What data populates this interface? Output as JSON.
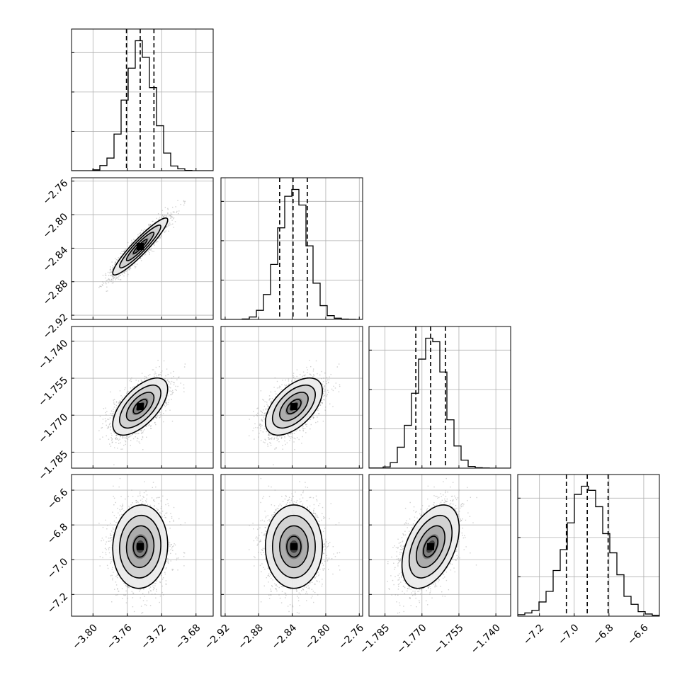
{
  "chart_data": {
    "type": "corner",
    "parameters": [
      {
        "center": -3.745,
        "sigma": 0.016,
        "quantiles": [
          -3.761,
          -3.745,
          -3.729
        ],
        "range": [
          -3.825,
          -3.66
        ],
        "ticks": [
          "−3.80",
          "−3.76",
          "−3.72",
          "−3.68"
        ],
        "tick_values": [
          -3.8,
          -3.76,
          -3.72,
          -3.68
        ]
      },
      {
        "center": -2.838,
        "sigma": 0.017,
        "quantiles": [
          -2.855,
          -2.839,
          -2.822
        ],
        "range": [
          -2.925,
          -2.756
        ],
        "ticks": [
          "−2.92",
          "−2.88",
          "−2.84",
          "−2.80",
          "−2.76"
        ],
        "tick_values": [
          -2.92,
          -2.88,
          -2.84,
          -2.8,
          -2.76
        ]
      },
      {
        "center": -1.7665,
        "sigma": 0.0058,
        "quantiles": [
          -1.7725,
          -1.7665,
          -1.7605
        ],
        "range": [
          -1.7915,
          -1.734
        ],
        "ticks": [
          "−1.785",
          "−1.770",
          "−1.755",
          "−1.740"
        ],
        "tick_values": [
          -1.785,
          -1.77,
          -1.755,
          -1.74
        ]
      },
      {
        "center": -6.925,
        "sigma": 0.12,
        "quantiles": [
          -7.045,
          -6.925,
          -6.805
        ],
        "range": [
          -7.325,
          -6.51
        ],
        "ticks": [
          "−7.2",
          "−7.0",
          "−6.8",
          "−6.6"
        ],
        "tick_values": [
          -7.2,
          -7.0,
          -6.8,
          -6.6
        ]
      }
    ],
    "correlations": [
      [
        1.0,
        0.93,
        0.62,
        0.05
      ],
      [
        0.93,
        1.0,
        0.55,
        0.0
      ],
      [
        0.62,
        0.55,
        1.0,
        0.45
      ],
      [
        0.05,
        0.0,
        0.45,
        1.0
      ]
    ],
    "histogram_bins": 20,
    "contour_levels_sigma": [
      0.5,
      1.0,
      1.5,
      2.0
    ],
    "quantile_line_style": "dashed",
    "grid": true,
    "colors": {
      "points": "#9a9a9a",
      "lines": "#000000",
      "grid": "#b0b0b0"
    }
  }
}
